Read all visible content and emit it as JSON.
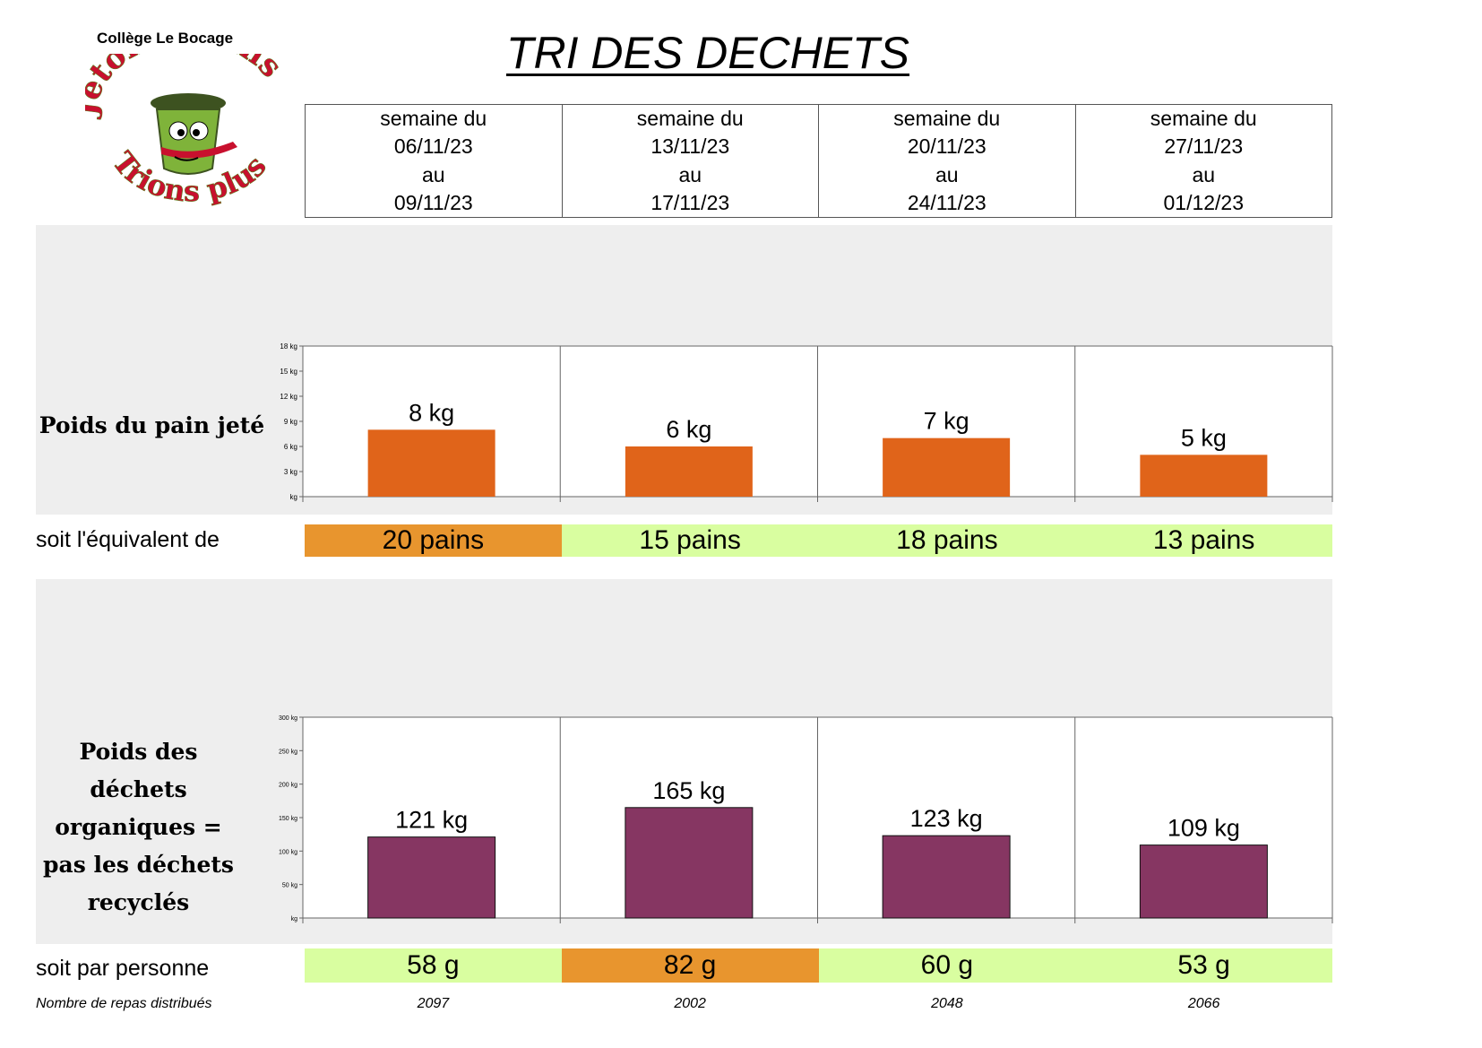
{
  "school": "Collège Le Bocage",
  "logo": {
    "top_text": "Jetons moins",
    "bottom_text": "Trions plus",
    "icon": "trash-can-mascot-icon"
  },
  "title": "TRI DES DECHETS",
  "weeks": [
    {
      "line1": "semaine du",
      "start": "06/11/23",
      "line3": "au",
      "end": "09/11/23"
    },
    {
      "line1": "semaine du",
      "start": "13/11/23",
      "line3": "au",
      "end": "17/11/23"
    },
    {
      "line1": "semaine du",
      "start": "20/11/23",
      "line3": "au",
      "end": "24/11/23"
    },
    {
      "line1": "semaine du",
      "start": "27/11/23",
      "line3": "au",
      "end": "01/12/23"
    }
  ],
  "bread_row_label": "soit l'équivalent de",
  "bread_equivalents": [
    {
      "text": "20 pains",
      "color": "#e8952e"
    },
    {
      "text": "15 pains",
      "color": "#d9fea0"
    },
    {
      "text": "18 pains",
      "color": "#d9fea0"
    },
    {
      "text": "13 pains",
      "color": "#d9fea0"
    }
  ],
  "person_row_label": "soit par personne",
  "per_person": [
    {
      "text": "58 g",
      "color": "#d9fea0"
    },
    {
      "text": "82 g",
      "color": "#e8952e"
    },
    {
      "text": "60 g",
      "color": "#d9fea0"
    },
    {
      "text": "53 g",
      "color": "#d9fea0"
    }
  ],
  "meals_label": "Nombre de repas distribués",
  "meals": [
    "2097",
    "2002",
    "2048",
    "2066"
  ],
  "chart_data": [
    {
      "type": "bar",
      "title": "Poids du pain jeté",
      "categories": [
        "06/11/23 - 09/11/23",
        "13/11/23 - 17/11/23",
        "20/11/23 - 24/11/23",
        "27/11/23 - 01/12/23"
      ],
      "values": [
        8,
        6,
        7,
        5
      ],
      "data_labels": [
        "8 kg",
        "6 kg",
        "7 kg",
        "5 kg"
      ],
      "ylim": [
        0,
        18
      ],
      "yticks": [
        0,
        3,
        6,
        9,
        12,
        15,
        18
      ],
      "ytick_labels": [
        "kg",
        "3 kg",
        "6 kg",
        "9 kg",
        "12 kg",
        "15 kg",
        "18 kg"
      ],
      "bar_color": "#e0641a",
      "grid": "vertical"
    },
    {
      "type": "bar",
      "title": "Poids des déchets organiques = pas les déchets recyclés",
      "title_lines": [
        "Poids des",
        "déchets",
        "organiques =",
        "pas les déchets",
        "recyclés"
      ],
      "categories": [
        "06/11/23 - 09/11/23",
        "13/11/23 - 17/11/23",
        "20/11/23 - 24/11/23",
        "27/11/23 - 01/12/23"
      ],
      "values": [
        121,
        165,
        123,
        109
      ],
      "data_labels": [
        "121 kg",
        "165 kg",
        "123 kg",
        "109 kg"
      ],
      "ylim": [
        0,
        300
      ],
      "yticks": [
        0,
        50,
        100,
        150,
        200,
        250,
        300
      ],
      "ytick_labels": [
        "kg",
        "50 kg",
        "100 kg",
        "150 kg",
        "200 kg",
        "250 kg",
        "300 kg"
      ],
      "bar_color": "#863662",
      "grid": "vertical"
    }
  ]
}
